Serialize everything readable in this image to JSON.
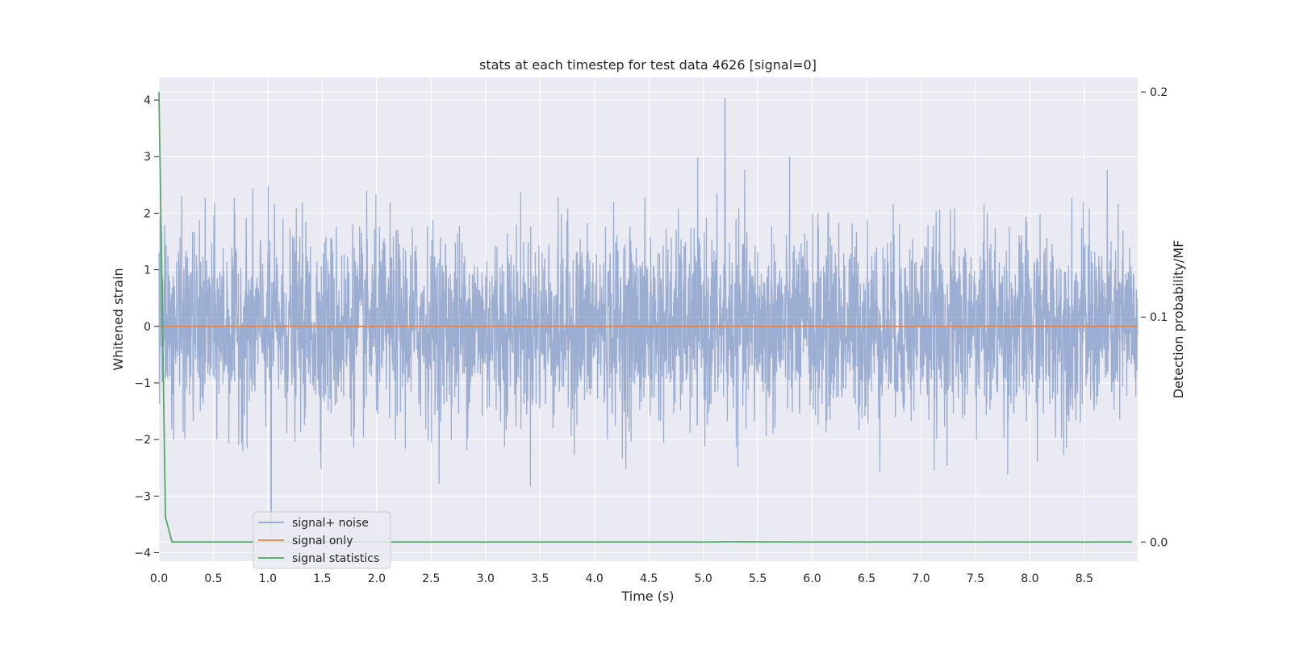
{
  "chart_data": {
    "type": "line",
    "title": "stats at each timestep for test data 4626 [signal=0]",
    "xlabel": "Time (s)",
    "ylabel": "Whitened strain",
    "y2label": "Detection probability/MF",
    "xlim": [
      0.0,
      8.99
    ],
    "ylim": [
      -4.15,
      4.4
    ],
    "y2lim": [
      -0.0085,
      0.2065
    ],
    "xticks": [
      "0.0",
      "0.5",
      "1.0",
      "1.5",
      "2.0",
      "2.5",
      "3.0",
      "3.5",
      "4.0",
      "4.5",
      "5.0",
      "5.5",
      "6.0",
      "6.5",
      "7.0",
      "7.5",
      "8.0",
      "8.5"
    ],
    "yticks": [
      "4",
      "3",
      "2",
      "1",
      "0",
      "−1",
      "−2",
      "−3",
      "−4"
    ],
    "y2ticks": [
      "0.2",
      "0.1",
      "0.0"
    ],
    "grid": true,
    "legend_position": "lower-left",
    "noise": {
      "duration_s": 8.99,
      "typical_amplitude": 1.3,
      "max_value": 4.02,
      "max_at_s": 5.2,
      "min_value": -3.6,
      "min_at_s": 1.03
    },
    "series": [
      {
        "name": "signal+ noise",
        "axis": "left",
        "color": "#4c72b0"
      },
      {
        "name": "signal only",
        "axis": "left",
        "color": "#dd8452",
        "x": [
          0.0,
          8.99
        ],
        "values": [
          0.0,
          0.0
        ]
      },
      {
        "name": "signal statistics",
        "axis": "right",
        "color": "#55a868",
        "x": [
          0.0,
          0.06,
          0.12,
          1.0,
          2.0,
          3.0,
          4.0,
          5.0,
          5.2,
          6.0,
          7.0,
          8.0,
          8.94
        ],
        "values": [
          0.2,
          0.011,
          0.0,
          0.0,
          0.0,
          0.0,
          0.0,
          0.0,
          0.0001,
          0.0,
          0.0,
          0.0,
          0.0
        ]
      }
    ],
    "colors": {
      "plot_background": "#eaeaf2",
      "grid": "#ffffff"
    }
  }
}
